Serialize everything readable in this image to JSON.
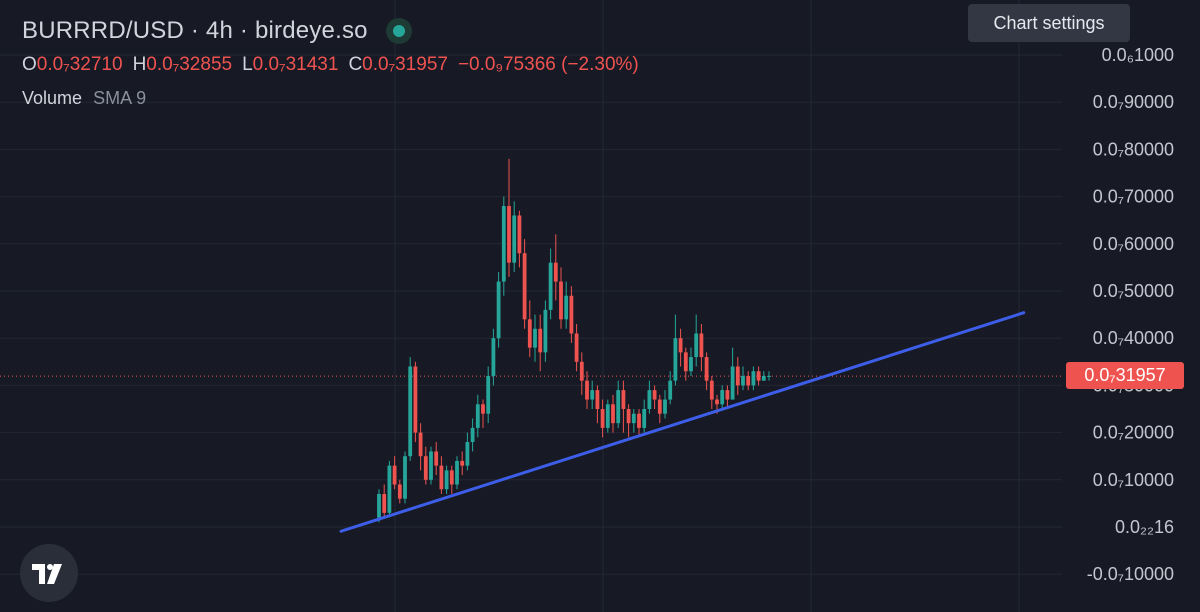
{
  "header": {
    "title": "BURRRD/USD · 4h · birdeye.so",
    "ohlc": [
      {
        "key": "O",
        "value": "0.0₇32710"
      },
      {
        "key": "H",
        "value": "0.0₇32855"
      },
      {
        "key": "L",
        "value": "0.0₇31431"
      },
      {
        "key": "C",
        "value": "0.0₇31957"
      }
    ],
    "change": "−0.0₉75366 (−2.30%)",
    "volume_label": "Volume",
    "volume_sma": "SMA 9"
  },
  "tooltip": "Chart settings",
  "last_price_label": "0.0₇31957",
  "icons": {
    "logo": "tradingview-logo-icon",
    "status": "status-dot-icon"
  },
  "colors": {
    "up": "#26a69a",
    "down": "#ef5350",
    "trendline": "#3d5ee8",
    "background": "#171a25"
  },
  "chart_data": {
    "type": "candlestick",
    "interval": "4h",
    "scale_unit": "1e-7 USD",
    "y_axis_labels": [
      "0.0₆1000",
      "0.0₇90000",
      "0.0₇80000",
      "0.0₇70000",
      "0.0₇60000",
      "0.0₇50000",
      "0.0₇40000",
      "0.0₇30000",
      "0.0₇20000",
      "0.0₇10000",
      "0.0₂₂16",
      "-0.0₇10000"
    ],
    "y_axis_values": [
      1.0,
      0.9,
      0.8,
      0.7,
      0.6,
      0.5,
      0.4,
      0.3,
      0.2,
      0.1,
      0.0,
      -0.1
    ],
    "last_price": 0.31957,
    "trendline": {
      "start": [
        0,
        -0.009
      ],
      "end": [
        114,
        0.454
      ]
    },
    "candles": [
      [
        0.02,
        0.07,
        0.01,
        0.08
      ],
      [
        0.07,
        0.03,
        0.02,
        0.09
      ],
      [
        0.03,
        0.13,
        0.02,
        0.14
      ],
      [
        0.13,
        0.09,
        0.08,
        0.15
      ],
      [
        0.09,
        0.06,
        0.05,
        0.1
      ],
      [
        0.06,
        0.15,
        0.05,
        0.16
      ],
      [
        0.15,
        0.34,
        0.14,
        0.36
      ],
      [
        0.34,
        0.2,
        0.18,
        0.35
      ],
      [
        0.2,
        0.15,
        0.12,
        0.22
      ],
      [
        0.15,
        0.1,
        0.09,
        0.17
      ],
      [
        0.1,
        0.16,
        0.09,
        0.17
      ],
      [
        0.16,
        0.13,
        0.11,
        0.18
      ],
      [
        0.13,
        0.08,
        0.07,
        0.15
      ],
      [
        0.08,
        0.12,
        0.07,
        0.13
      ],
      [
        0.12,
        0.09,
        0.07,
        0.13
      ],
      [
        0.09,
        0.14,
        0.08,
        0.15
      ],
      [
        0.14,
        0.13,
        0.11,
        0.16
      ],
      [
        0.13,
        0.18,
        0.12,
        0.2
      ],
      [
        0.18,
        0.21,
        0.16,
        0.23
      ],
      [
        0.21,
        0.26,
        0.19,
        0.28
      ],
      [
        0.26,
        0.24,
        0.21,
        0.27
      ],
      [
        0.24,
        0.32,
        0.22,
        0.34
      ],
      [
        0.32,
        0.4,
        0.3,
        0.42
      ],
      [
        0.4,
        0.52,
        0.38,
        0.54
      ],
      [
        0.52,
        0.68,
        0.49,
        0.7
      ],
      [
        0.68,
        0.56,
        0.53,
        0.78
      ],
      [
        0.56,
        0.66,
        0.54,
        0.69
      ],
      [
        0.66,
        0.58,
        0.55,
        0.67
      ],
      [
        0.58,
        0.44,
        0.42,
        0.61
      ],
      [
        0.44,
        0.38,
        0.36,
        0.48
      ],
      [
        0.38,
        0.42,
        0.35,
        0.45
      ],
      [
        0.42,
        0.37,
        0.33,
        0.45
      ],
      [
        0.37,
        0.46,
        0.35,
        0.48
      ],
      [
        0.46,
        0.56,
        0.44,
        0.59
      ],
      [
        0.56,
        0.52,
        0.48,
        0.62
      ],
      [
        0.52,
        0.44,
        0.42,
        0.55
      ],
      [
        0.44,
        0.49,
        0.42,
        0.52
      ],
      [
        0.49,
        0.41,
        0.39,
        0.51
      ],
      [
        0.41,
        0.35,
        0.33,
        0.43
      ],
      [
        0.35,
        0.31,
        0.28,
        0.37
      ],
      [
        0.31,
        0.27,
        0.25,
        0.33
      ],
      [
        0.27,
        0.29,
        0.25,
        0.31
      ],
      [
        0.29,
        0.25,
        0.22,
        0.3
      ],
      [
        0.25,
        0.21,
        0.19,
        0.27
      ],
      [
        0.21,
        0.26,
        0.2,
        0.27
      ],
      [
        0.26,
        0.22,
        0.2,
        0.28
      ],
      [
        0.22,
        0.29,
        0.21,
        0.31
      ],
      [
        0.29,
        0.25,
        0.2,
        0.31
      ],
      [
        0.25,
        0.22,
        0.19,
        0.26
      ],
      [
        0.22,
        0.24,
        0.2,
        0.25
      ],
      [
        0.24,
        0.21,
        0.19,
        0.25
      ],
      [
        0.21,
        0.25,
        0.2,
        0.27
      ],
      [
        0.25,
        0.29,
        0.24,
        0.31
      ],
      [
        0.29,
        0.27,
        0.25,
        0.3
      ],
      [
        0.27,
        0.24,
        0.22,
        0.28
      ],
      [
        0.24,
        0.27,
        0.23,
        0.29
      ],
      [
        0.27,
        0.31,
        0.26,
        0.33
      ],
      [
        0.31,
        0.4,
        0.3,
        0.45
      ],
      [
        0.4,
        0.37,
        0.34,
        0.42
      ],
      [
        0.37,
        0.33,
        0.31,
        0.38
      ],
      [
        0.33,
        0.36,
        0.32,
        0.38
      ],
      [
        0.36,
        0.41,
        0.34,
        0.45
      ],
      [
        0.41,
        0.36,
        0.33,
        0.43
      ],
      [
        0.36,
        0.31,
        0.29,
        0.37
      ],
      [
        0.31,
        0.27,
        0.25,
        0.32
      ],
      [
        0.27,
        0.26,
        0.24,
        0.28
      ],
      [
        0.26,
        0.29,
        0.25,
        0.3
      ],
      [
        0.29,
        0.27,
        0.25,
        0.3
      ],
      [
        0.27,
        0.34,
        0.27,
        0.38
      ],
      [
        0.34,
        0.3,
        0.28,
        0.36
      ],
      [
        0.3,
        0.32,
        0.29,
        0.34
      ],
      [
        0.32,
        0.3,
        0.29,
        0.33
      ],
      [
        0.3,
        0.33,
        0.29,
        0.34
      ],
      [
        0.33,
        0.31,
        0.3,
        0.34
      ],
      [
        0.31,
        0.32,
        0.31,
        0.33
      ],
      [
        0.32,
        0.32,
        0.31,
        0.33
      ]
    ],
    "candle_format": [
      "open",
      "close",
      "low",
      "high"
    ]
  }
}
